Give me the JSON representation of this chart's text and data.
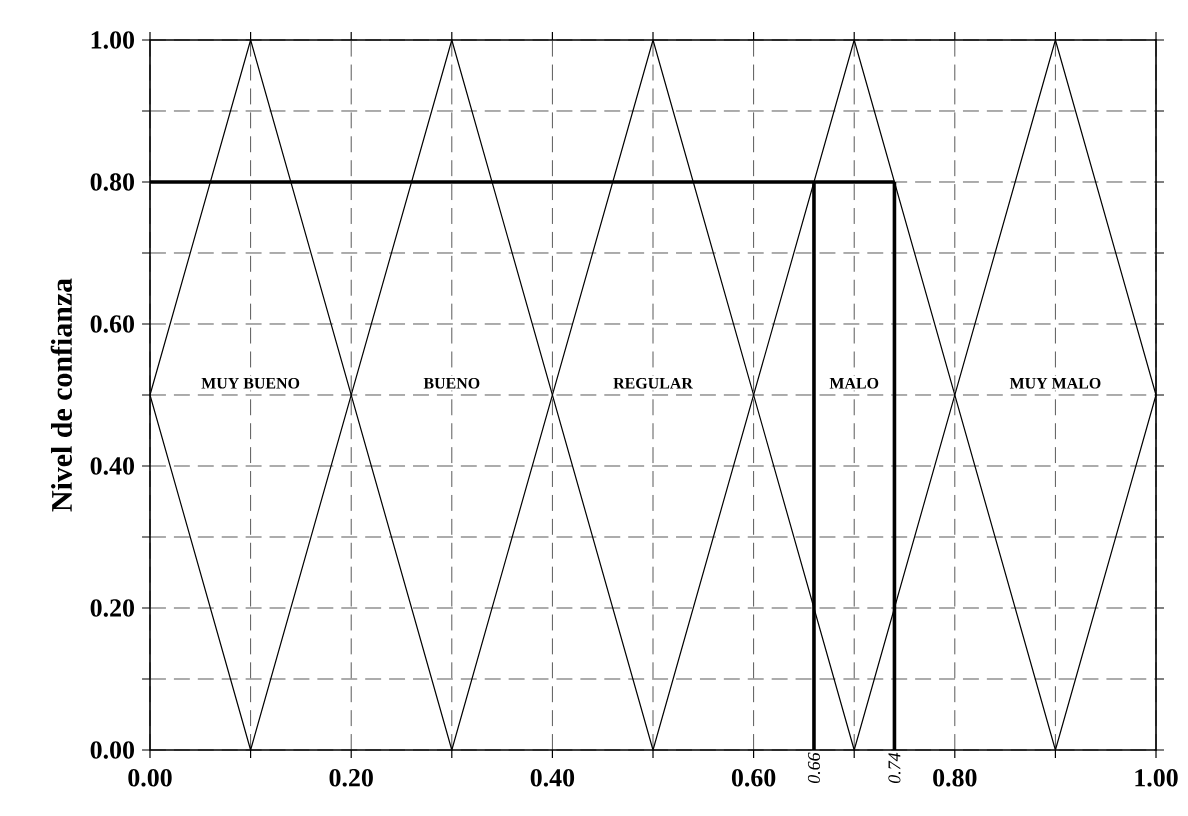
{
  "chart_data": {
    "type": "line",
    "ylabel": "Nivel de confianza",
    "xlim": [
      0,
      1
    ],
    "ylim": [
      0,
      1
    ],
    "xticks": [
      {
        "value": 0,
        "label": "0.00"
      },
      {
        "value": 0.1,
        "label": null
      },
      {
        "value": 0.2,
        "label": "0.20"
      },
      {
        "value": 0.3,
        "label": null
      },
      {
        "value": 0.4,
        "label": "0.40"
      },
      {
        "value": 0.5,
        "label": null
      },
      {
        "value": 0.6,
        "label": "0.60"
      },
      {
        "value": 0.7,
        "label": null
      },
      {
        "value": 0.8,
        "label": "0.80"
      },
      {
        "value": 0.9,
        "label": null
      },
      {
        "value": 1,
        "label": "1.00"
      }
    ],
    "yticks": [
      {
        "value": 0,
        "label": "0.00"
      },
      {
        "value": 0.1,
        "label": null
      },
      {
        "value": 0.2,
        "label": "0.20"
      },
      {
        "value": 0.3,
        "label": null
      },
      {
        "value": 0.4,
        "label": "0.40"
      },
      {
        "value": 0.5,
        "label": null
      },
      {
        "value": 0.6,
        "label": "0.60"
      },
      {
        "value": 0.7,
        "label": null
      },
      {
        "value": 0.8,
        "label": "0.80"
      },
      {
        "value": 0.9,
        "label": null
      },
      {
        "value": 1,
        "label": "1.00"
      }
    ],
    "grid": true,
    "line_style": "solid",
    "marker": "none",
    "series": [
      {
        "color": "#000000",
        "x": [
          0,
          0.1,
          0.3,
          0.5,
          0.7,
          0.9,
          1
        ],
        "values": [
          0.5,
          1,
          0,
          1,
          0,
          1,
          0.5
        ]
      },
      {
        "color": "#000000",
        "x": [
          0,
          0.1,
          0.3,
          0.5,
          0.7,
          0.9,
          1
        ],
        "values": [
          0.5,
          0,
          1,
          0,
          1,
          0,
          0.5
        ]
      },
      {
        "color": "#000000",
        "x": [
          0,
          0.74
        ],
        "values": [
          0.8,
          0.8
        ]
      },
      {
        "color": "#000000",
        "x": [
          0.66,
          0.66
        ],
        "values": [
          0,
          0.8
        ]
      },
      {
        "color": "#000000",
        "x": [
          0.74,
          0.74
        ],
        "values": [
          0,
          0.8
        ]
      }
    ],
    "annotations": [
      "MUY BUENO",
      "BUENO",
      "REGULAR",
      "MALO",
      "MUY MALO",
      {
        "text": "0.66",
        "x": 0.66,
        "y": 0
      },
      {
        "text": "0.74",
        "x": 0.74,
        "y": 0
      }
    ]
  }
}
